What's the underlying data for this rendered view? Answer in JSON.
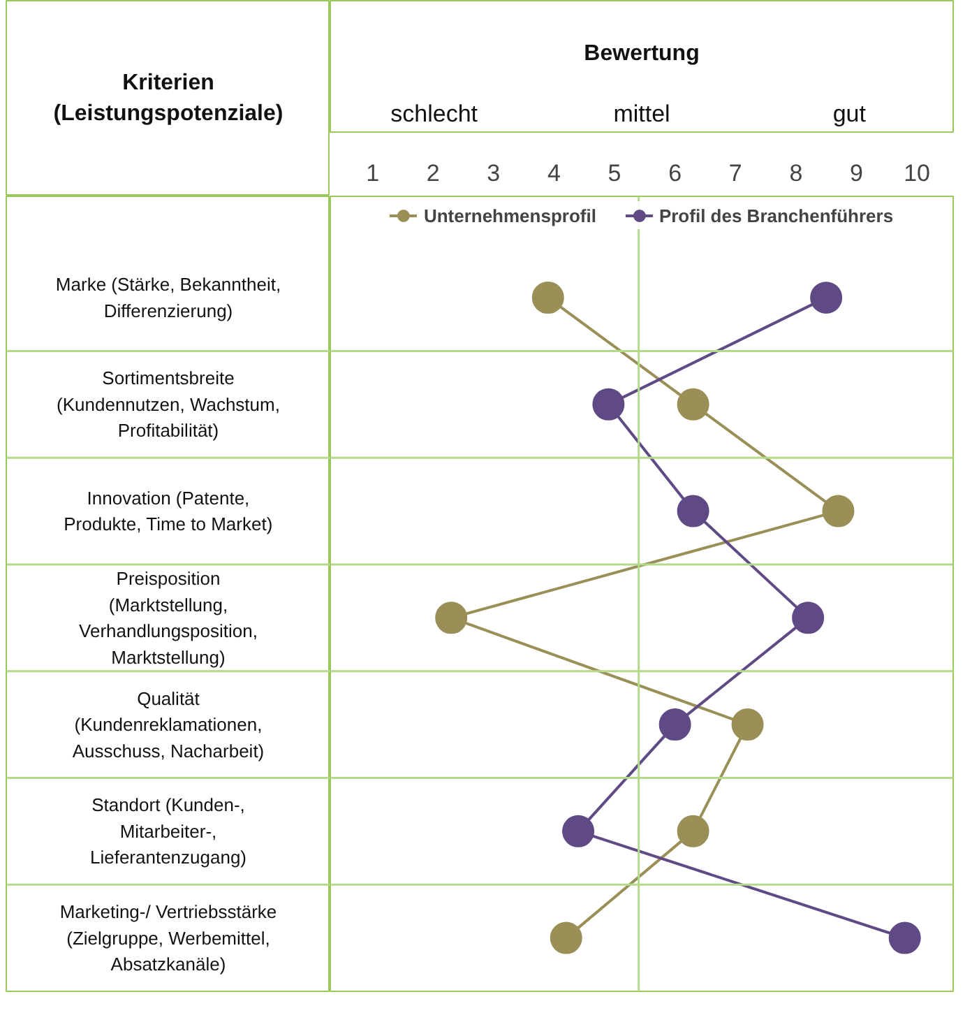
{
  "chart_data": {
    "type": "line",
    "orientation": "horizontal",
    "title": "Bewertung",
    "ylabel": "Kriterien (Leistungspotenziale)",
    "categories": [
      "Marke (Stärke, Bekanntheit, Differenzierung)",
      "Sortimentsbreite (Kundennutzen, Wachstum, Profitabilität)",
      "Innovation (Patente, Produkte, Time to Market)",
      "Preisposition (Marktstellung, Verhandlungsposition, Marktstellung)",
      "Qualität (Kundenreklamationen, Ausschuss, Nacharbeit)",
      "Standort (Kunden-, Mitarbeiter-, Lieferantenzugang)",
      "Marketing-/ Vertriebsstärke (Zielgruppe, Werbemittel, Absatzkanäle)"
    ],
    "series": [
      {
        "name": "Unternehmensprofil",
        "color": "#9a9057",
        "values": [
          3.9,
          6.3,
          8.7,
          2.3,
          7.2,
          6.3,
          4.2
        ]
      },
      {
        "name": "Profil des Branchenführers",
        "color": "#5f4a85",
        "values": [
          8.5,
          4.9,
          6.3,
          8.2,
          6.0,
          4.4,
          9.8
        ]
      }
    ],
    "xlim": [
      0.3,
      10.6
    ],
    "xticks": [
      1,
      2,
      3,
      4,
      5,
      6,
      7,
      8,
      9,
      10
    ],
    "annotations": [
      "schlecht",
      "mittel",
      "gut"
    ],
    "ref_lines": [
      {
        "axis": "x",
        "value": 5.4,
        "label": null,
        "color": "#b5d98a"
      }
    ],
    "marker": "circle",
    "line_style": "solid",
    "legend": "top"
  }
}
